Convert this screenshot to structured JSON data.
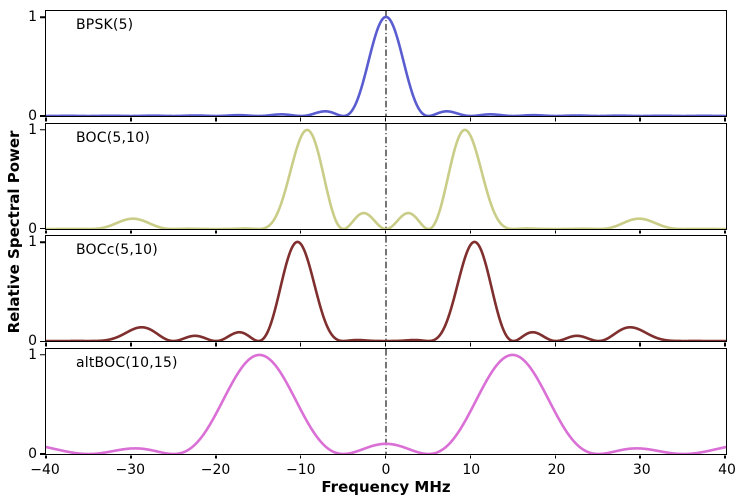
{
  "chart_data": {
    "type": "line",
    "title": "",
    "xlabel": "Frequency MHz",
    "ylabel": "Relative Spectral Power",
    "xlim": [
      -40,
      40
    ],
    "ylim_per_panel": [
      0,
      1.06
    ],
    "grid": false,
    "legend_position": "none (signal name labeled inside each panel, top-left)",
    "x_tick_values": [
      -40,
      -30,
      -20,
      -10,
      0,
      10,
      20,
      30,
      40
    ],
    "x_tick_labels": [
      "−40",
      "−30",
      "−20",
      "−10",
      "0",
      "10",
      "20",
      "30",
      "40"
    ],
    "y_tick_labels": {
      "top": "1",
      "bottom": "0"
    },
    "centerline": {
      "x": 0,
      "style": "dash-dot",
      "color": "#1a1a1a"
    },
    "sample_step_mhz": 0.05,
    "panels": [
      {
        "label": "BPSK(5)",
        "color": "#5a5dd0",
        "model": "bpsk",
        "chip_rate_mhz": 5,
        "subcarrier_mhz": 0,
        "main_peaks_mhz": [
          0
        ],
        "peak_value": 1.0,
        "nulls_every_mhz": 5,
        "secondary_peaks": [
          {
            "f_mhz": -7.5,
            "value": 0.045
          },
          {
            "f_mhz": 7.5,
            "value": 0.045
          },
          {
            "f_mhz": -12.5,
            "value": 0.016
          },
          {
            "f_mhz": 12.5,
            "value": 0.016
          }
        ]
      },
      {
        "label": "BOC(5,10)",
        "color": "#c9cd87",
        "model": "boc_sin",
        "chip_rate_mhz": 5,
        "subcarrier_mhz": 10,
        "main_peaks_mhz": [
          -9.5,
          9.5
        ],
        "peak_value": 1.0,
        "secondary_peaks": [
          {
            "f_mhz": -30,
            "value": 0.11
          },
          {
            "f_mhz": 30,
            "value": 0.11
          },
          {
            "f_mhz": -2.6,
            "value": 0.17
          },
          {
            "f_mhz": 2.6,
            "value": 0.17
          }
        ]
      },
      {
        "label": "BOCc(5,10)",
        "color": "#802f2f",
        "model": "boc_cos",
        "chip_rate_mhz": 5,
        "subcarrier_mhz": 10,
        "main_peaks_mhz": [
          -10.5,
          10.5
        ],
        "peak_value": 1.0,
        "secondary_peaks": [
          {
            "f_mhz": -30,
            "value": 0.11
          },
          {
            "f_mhz": 30,
            "value": 0.11
          },
          {
            "f_mhz": -17.5,
            "value": 0.09
          },
          {
            "f_mhz": 17.5,
            "value": 0.09
          },
          {
            "f_mhz": -22.5,
            "value": 0.05
          },
          {
            "f_mhz": 22.5,
            "value": 0.05
          }
        ]
      },
      {
        "label": "altBOC(10,15)",
        "color": "#da70d6",
        "model": "altboc",
        "chip_rate_mhz": 10,
        "subcarrier_mhz": 15,
        "main_peaks_mhz": [
          -15,
          15
        ],
        "peak_value": 1.0,
        "secondary_peaks": [
          {
            "f_mhz": 0,
            "value": 0.1
          },
          {
            "f_mhz": -30,
            "value": 0.06
          },
          {
            "f_mhz": 30,
            "value": 0.06
          }
        ]
      }
    ]
  }
}
